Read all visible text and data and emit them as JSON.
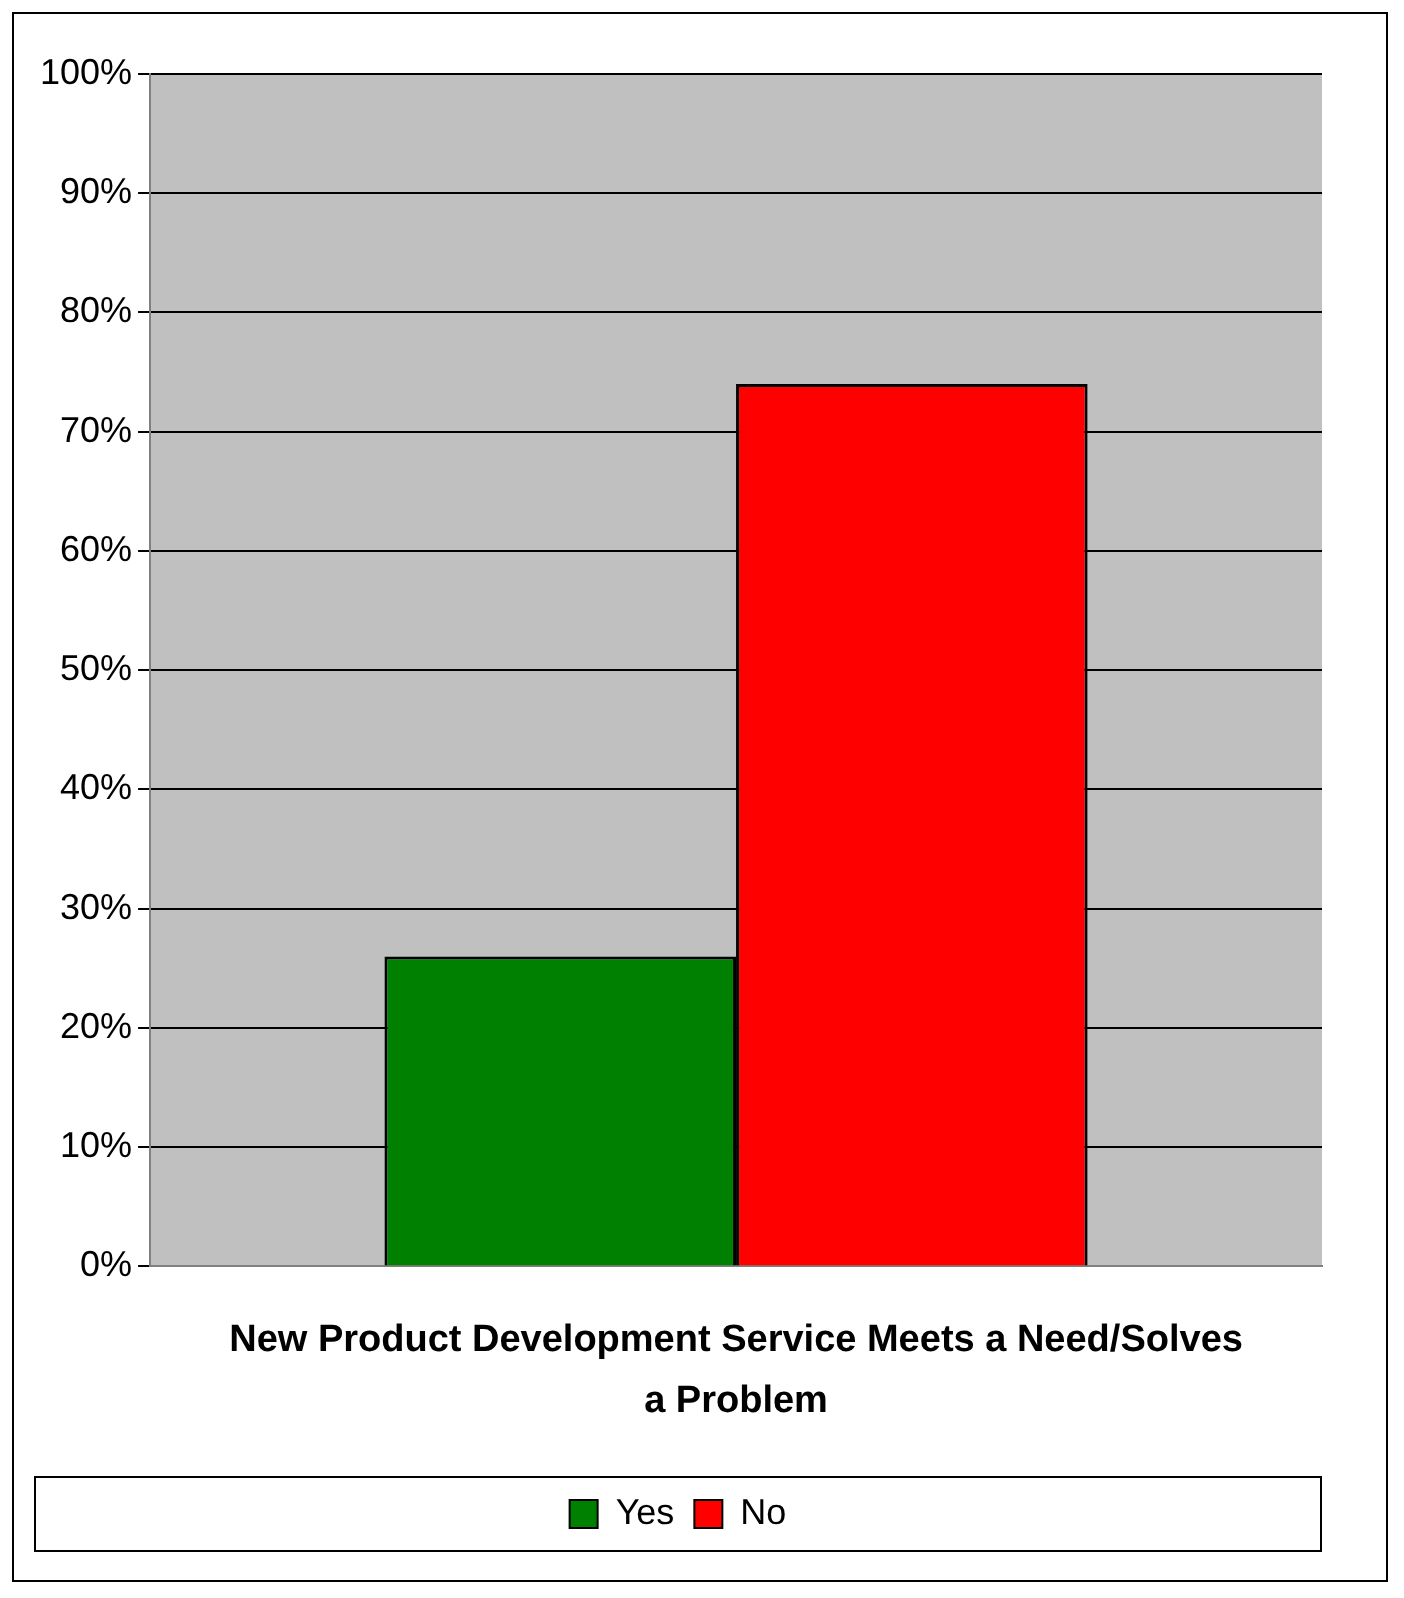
{
  "chart_data": {
    "type": "bar",
    "categories": [
      "New Product Development Service Meets a Need/Solves a Problem"
    ],
    "series": [
      {
        "name": "Yes",
        "color": "#008000",
        "values": [
          26
        ]
      },
      {
        "name": "No",
        "color": "#ff0000",
        "values": [
          74
        ]
      }
    ],
    "ylim": [
      0,
      100
    ],
    "yticks": [
      {
        "value": 0,
        "label": "0%"
      },
      {
        "value": 10,
        "label": "10%"
      },
      {
        "value": 20,
        "label": "20%"
      },
      {
        "value": 30,
        "label": "30%"
      },
      {
        "value": 40,
        "label": "40%"
      },
      {
        "value": 50,
        "label": "50%"
      },
      {
        "value": 60,
        "label": "60%"
      },
      {
        "value": 70,
        "label": "70%"
      },
      {
        "value": 80,
        "label": "80%"
      },
      {
        "value": 90,
        "label": "90%"
      },
      {
        "value": 100,
        "label": "100%"
      }
    ],
    "grid": "y",
    "legend": "bottom"
  }
}
